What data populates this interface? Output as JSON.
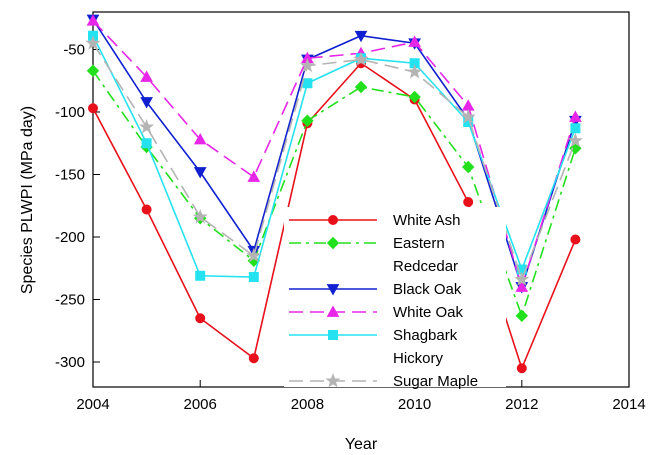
{
  "chart_data": {
    "type": "line",
    "xlabel": "Year",
    "ylabel": "Species PLWPI (MPa day)",
    "xlim": [
      2004,
      2014
    ],
    "ylim": [
      -320,
      -20
    ],
    "xticks": [
      2004,
      2006,
      2008,
      2010,
      2012,
      2014
    ],
    "yticks": [
      -300,
      -250,
      -200,
      -150,
      -100,
      -50
    ],
    "x": [
      2004,
      2005,
      2006,
      2007,
      2008,
      2009,
      2010,
      2011,
      2012,
      2013
    ],
    "grid": false,
    "legend_position": "center",
    "series": [
      {
        "name": "White Ash",
        "legend_lines": [
          "White Ash"
        ],
        "color": "#e8101a",
        "dash": "solid",
        "marker": "circle",
        "values": [
          -97,
          -178,
          -265,
          -297,
          -109,
          -61,
          -90,
          -172,
          -305,
          -202
        ]
      },
      {
        "name": "Eastern Redcedar",
        "legend_lines": [
          "Eastern",
          "Redcedar"
        ],
        "color": "#22e01c",
        "dash": "dashdot",
        "marker": "diamond",
        "values": [
          -67,
          -128,
          -185,
          -219,
          -107,
          -80,
          -88,
          -144,
          -263,
          -129
        ]
      },
      {
        "name": "Black Oak",
        "legend_lines": [
          "Black Oak"
        ],
        "color": "#1020d0",
        "dash": "solid",
        "marker": "triangle-down",
        "values": [
          -26,
          -92,
          -148,
          -211,
          -58,
          -39,
          -45,
          -106,
          -240,
          -107
        ]
      },
      {
        "name": "White Oak",
        "legend_lines": [
          "White Oak"
        ],
        "color": "#e826e8",
        "dash": "dashed",
        "marker": "triangle-up",
        "values": [
          -27,
          -72,
          -122,
          -152,
          -57,
          -53,
          -44,
          -95,
          -240,
          -104
        ]
      },
      {
        "name": "Shagbark Hickory",
        "legend_lines": [
          "Shagbark",
          "Hickory"
        ],
        "color": "#25e2f0",
        "dash": "solid",
        "marker": "square",
        "values": [
          -39,
          -125,
          -231,
          -232,
          -77,
          -57,
          -61,
          -108,
          -226,
          -113
        ]
      },
      {
        "name": "Sugar Maple",
        "legend_lines": [
          "Sugar Maple"
        ],
        "color": "#b4b4b4",
        "dash": "dashed",
        "marker": "star",
        "values": [
          -45,
          -112,
          -184,
          -215,
          -63,
          -58,
          -68,
          -104,
          -234,
          -123
        ]
      }
    ]
  }
}
